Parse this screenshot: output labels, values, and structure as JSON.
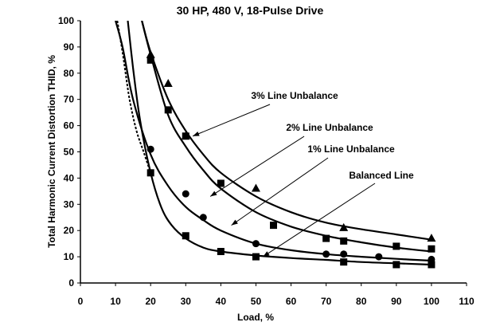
{
  "chart_data": {
    "type": "scatter",
    "title": "30 HP, 480 V, 18-Pulse Drive",
    "xlabel": "Load, %",
    "ylabel": "Total Harmonic Current Distortion THID, %",
    "xlim": [
      0,
      110
    ],
    "ylim": [
      0,
      100
    ],
    "x_ticks": [
      "0",
      "10",
      "20",
      "30",
      "40",
      "50",
      "60",
      "70",
      "80",
      "90",
      "100",
      "110"
    ],
    "y_ticks": [
      "0",
      "10",
      "20",
      "30",
      "40",
      "50",
      "60",
      "70",
      "80",
      "90",
      "100"
    ],
    "grid": false,
    "series": [
      {
        "name": "3% Line Unbalance",
        "marker": "triangle",
        "points": [
          [
            20,
            87
          ],
          [
            25,
            76
          ],
          [
            30,
            56
          ],
          [
            50,
            36
          ],
          [
            75,
            21
          ],
          [
            100,
            17
          ]
        ],
        "curve": [
          [
            17.5,
            100
          ],
          [
            20,
            88
          ],
          [
            25,
            70
          ],
          [
            30,
            58
          ],
          [
            35,
            49
          ],
          [
            40,
            42
          ],
          [
            50,
            33
          ],
          [
            60,
            27
          ],
          [
            70,
            23
          ],
          [
            80,
            20.5
          ],
          [
            90,
            18.5
          ],
          [
            100,
            16.5
          ]
        ]
      },
      {
        "name": "2% Line Unbalance",
        "marker": "square",
        "points": [
          [
            20,
            85
          ],
          [
            25,
            66
          ],
          [
            30,
            56
          ],
          [
            40,
            38
          ],
          [
            55,
            22
          ],
          [
            70,
            17
          ],
          [
            75,
            16
          ],
          [
            90,
            14
          ],
          [
            100,
            13
          ]
        ],
        "curve": [
          [
            17.5,
            100
          ],
          [
            20,
            87
          ],
          [
            25,
            64
          ],
          [
            30,
            52
          ],
          [
            35,
            43
          ],
          [
            40,
            36
          ],
          [
            50,
            27
          ],
          [
            60,
            21.5
          ],
          [
            70,
            18
          ],
          [
            80,
            15.5
          ],
          [
            90,
            13.5
          ],
          [
            100,
            12
          ]
        ]
      },
      {
        "name": "1% Line Unbalance",
        "marker": "circle",
        "points": [
          [
            20,
            51
          ],
          [
            30,
            34
          ],
          [
            35,
            25
          ],
          [
            50,
            15
          ],
          [
            70,
            11
          ],
          [
            75,
            11
          ],
          [
            85,
            10
          ],
          [
            100,
            9
          ]
        ],
        "curve": [
          [
            10,
            100
          ],
          [
            12,
            90
          ],
          [
            15,
            70
          ],
          [
            20,
            49
          ],
          [
            25,
            37
          ],
          [
            30,
            29
          ],
          [
            35,
            24
          ],
          [
            40,
            20
          ],
          [
            50,
            15
          ],
          [
            60,
            12.5
          ],
          [
            70,
            11
          ],
          [
            80,
            10
          ],
          [
            90,
            9.2
          ],
          [
            100,
            8.5
          ]
        ]
      },
      {
        "name": "Balanced Line",
        "marker": "square",
        "points": [
          [
            20,
            42
          ],
          [
            30,
            18
          ],
          [
            40,
            12
          ],
          [
            50,
            10
          ],
          [
            75,
            8
          ],
          [
            90,
            7
          ],
          [
            100,
            7
          ]
        ],
        "curve": [
          [
            13.5,
            100
          ],
          [
            15,
            82
          ],
          [
            17,
            62
          ],
          [
            20,
            42
          ],
          [
            23,
            29
          ],
          [
            26,
            22
          ],
          [
            30,
            17
          ],
          [
            35,
            13.5
          ],
          [
            40,
            12
          ],
          [
            50,
            10.5
          ],
          [
            60,
            9.5
          ],
          [
            70,
            8.8
          ],
          [
            80,
            8
          ],
          [
            90,
            7.5
          ],
          [
            100,
            7
          ]
        ],
        "dashed_segment": [
          [
            10.5,
            100
          ],
          [
            12,
            88
          ],
          [
            14,
            70
          ],
          [
            16,
            58
          ],
          [
            18,
            50
          ],
          [
            20,
            42
          ]
        ]
      }
    ],
    "annotations": [
      {
        "text": "3% Line Unbalance",
        "target": [
          32,
          56
        ]
      },
      {
        "text": "2% Line Unbalance",
        "target": [
          37,
          33
        ]
      },
      {
        "text": "1% Line Unbalance",
        "target": [
          43,
          22
        ]
      },
      {
        "text": "Balanced Line",
        "target": [
          52,
          10
        ]
      }
    ]
  }
}
